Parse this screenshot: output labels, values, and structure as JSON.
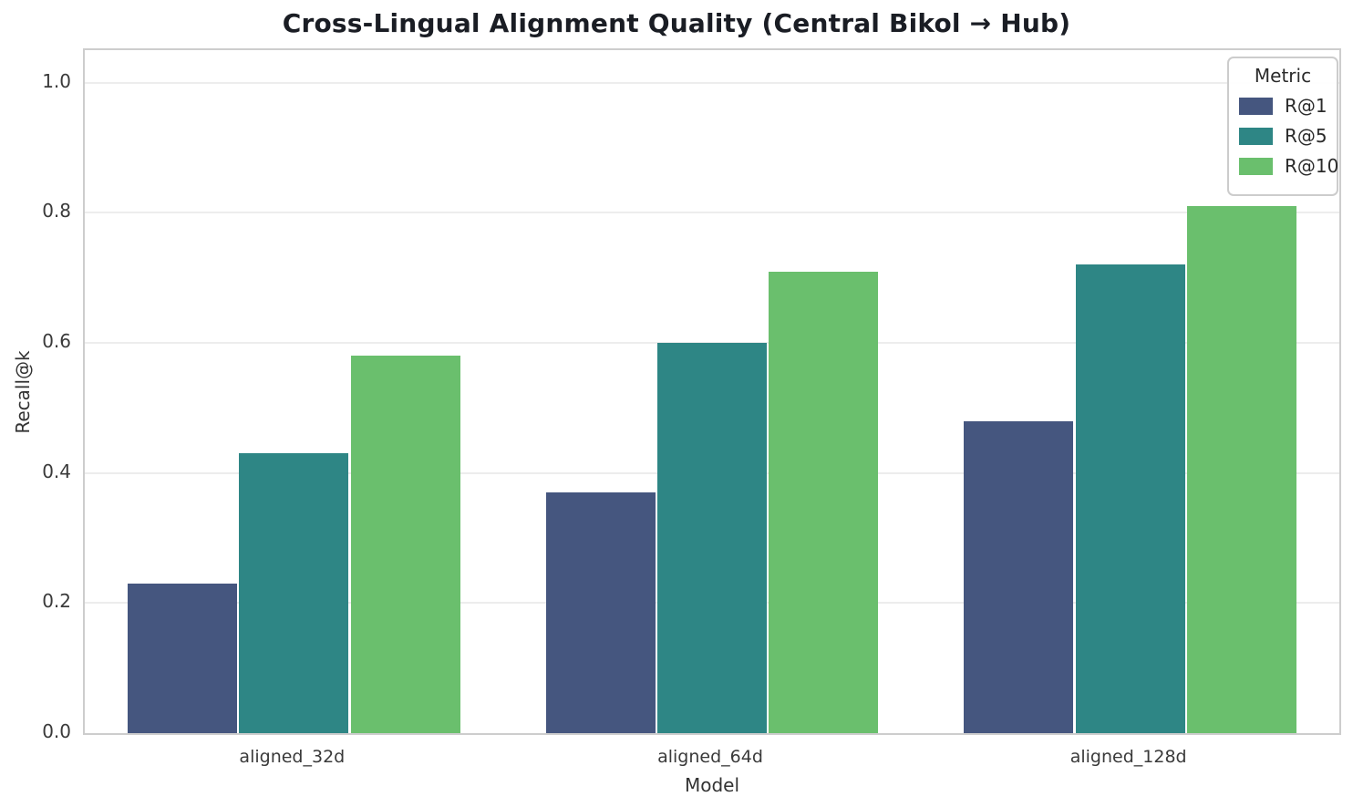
{
  "chart_data": {
    "type": "bar",
    "title": "Cross-Lingual Alignment Quality (Central Bikol → Hub)",
    "categories": [
      "aligned_32d",
      "aligned_64d",
      "aligned_128d"
    ],
    "series": [
      {
        "name": "R@1",
        "color": "#45567f",
        "values": [
          0.23,
          0.37,
          0.48
        ]
      },
      {
        "name": "R@5",
        "color": "#2e8685",
        "values": [
          0.43,
          0.6,
          0.72
        ]
      },
      {
        "name": "R@10",
        "color": "#6abf6d",
        "values": [
          0.58,
          0.71,
          0.81
        ]
      }
    ],
    "xlabel": "Model",
    "ylabel": "Recall@k",
    "ylim": [
      0,
      1.05
    ],
    "yticks": [
      0.0,
      0.2,
      0.4,
      0.6,
      0.8,
      1.0
    ],
    "grid": true,
    "legend": {
      "title": "Metric",
      "position": "upper right"
    }
  }
}
